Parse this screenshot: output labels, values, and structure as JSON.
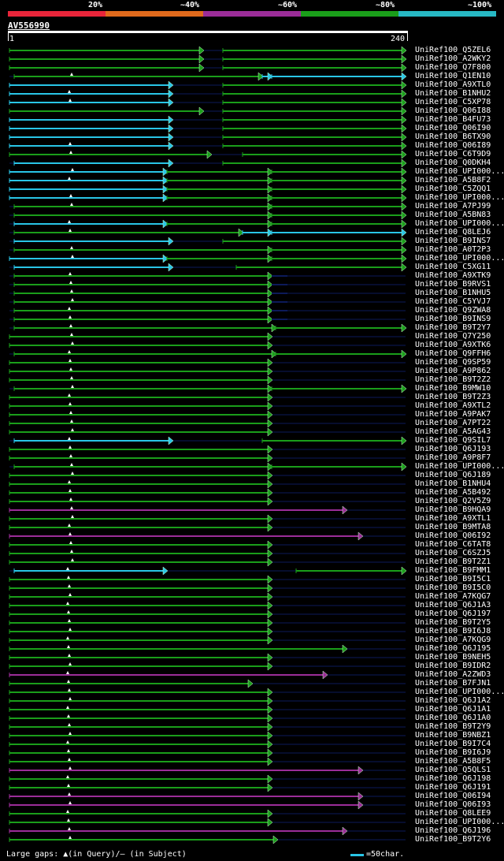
{
  "legend": {
    "labels": [
      "20%",
      "~40%",
      "~60%",
      "~80%",
      "~100%"
    ],
    "colors": [
      "#e8253a",
      "#e06a1c",
      "#9b2d98",
      "#1a9e1a",
      "#27b8c4"
    ]
  },
  "query": {
    "id": "AV556990",
    "start": "1",
    "end": "240"
  },
  "hit_labels": [
    "UniRef100_Q5ZEL6",
    "UniRef100_A2WKY2",
    "UniRef100_Q7F800",
    "UniRef100_Q1EN10",
    "UniRef100_A9XTL0",
    "UniRef100_B1NHU2",
    "UniRef100_C5XP78",
    "UniRef100_Q06I88",
    "UniRef100_B4FU73",
    "UniRef100_Q06I90",
    "UniRef100_B6TX90",
    "UniRef100_Q06I89",
    "UniRef100_C6T9D9",
    "UniRef100_Q0DKH4",
    "UniRef100_UPI000...",
    "UniRef100_A5B8F2",
    "UniRef100_C5ZQQ1",
    "UniRef100_UPI000...",
    "UniRef100_A7PJ99",
    "UniRef100_A5BN83",
    "UniRef100_UPI000...",
    "UniRef100_Q8LEJ6",
    "UniRef100_B9INS7",
    "UniRef100_A0T2P3",
    "UniRef100_UPI000...",
    "UniRef100_C5XG11",
    "UniRef100_A9XTK9",
    "UniRef100_B9RVS1",
    "UniRef100_B1NHU5",
    "UniRef100_C5YVJ7",
    "UniRef100_Q9ZWA8",
    "UniRef100_B9INS9",
    "UniRef100_B9T2Y7",
    "UniRef100_Q7Y250",
    "UniRef100_A9XTK6",
    "UniRef100_Q9FFH6",
    "UniRef100_Q9SP59",
    "UniRef100_A9P862",
    "UniRef100_B9T2Z2",
    "UniRef100_B9MW10",
    "UniRef100_B9T2Z3",
    "UniRef100_A9XTL2",
    "UniRef100_A9PAK7",
    "UniRef100_A7PT22",
    "UniRef100_A5AG43",
    "UniRef100_Q9SIL7",
    "UniRef100_Q6J193",
    "UniRef100_A9P8F7",
    "UniRef100_UPI000...",
    "UniRef100_Q6J189",
    "UniRef100_B1NHU4",
    "UniRef100_A5B492",
    "UniRef100_Q2V5Z9",
    "UniRef100_B9HQA9",
    "UniRef100_A9XTL1",
    "UniRef100_B9MTA8",
    "UniRef100_Q06I92",
    "UniRef100_C6TAT8",
    "UniRef100_C6SZJ5",
    "UniRef100_B9T2Z1",
    "UniRef100_B9FMM1",
    "UniRef100_B9I5C1",
    "UniRef100_B9I5C0",
    "UniRef100_A7KQG7",
    "UniRef100_Q6J1A3",
    "UniRef100_Q6J197",
    "UniRef100_B9T2Y5",
    "UniRef100_B9I6J8",
    "UniRef100_A7KQG9",
    "UniRef100_Q6J195",
    "UniRef100_B9NEH5",
    "UniRef100_B9IDR2",
    "UniRef100_A2ZWD3",
    "UniRef100_B7FJN1",
    "UniRef100_UPI000...",
    "UniRef100_Q6J1A2",
    "UniRef100_Q6J1A1",
    "UniRef100_Q6J1A0",
    "UniRef100_B9T2Y9",
    "UniRef100_B9NBZ1",
    "UniRef100_B9I7C4",
    "UniRef100_B9I6J9",
    "UniRef100_A5B8F5",
    "UniRef100_Q5QLS1",
    "UniRef100_Q6J198",
    "UniRef100_Q6J191",
    "UniRef100_Q06I94",
    "UniRef100_Q06I93",
    "UniRef100_Q8LEE9",
    "UniRef100_UPI000...",
    "UniRef100_Q6J196",
    "UniRef100_B9T2Y6"
  ],
  "footer": {
    "left": "Large gaps: ▲(in Query)/– (in Subject)",
    "right": "=50char."
  }
}
